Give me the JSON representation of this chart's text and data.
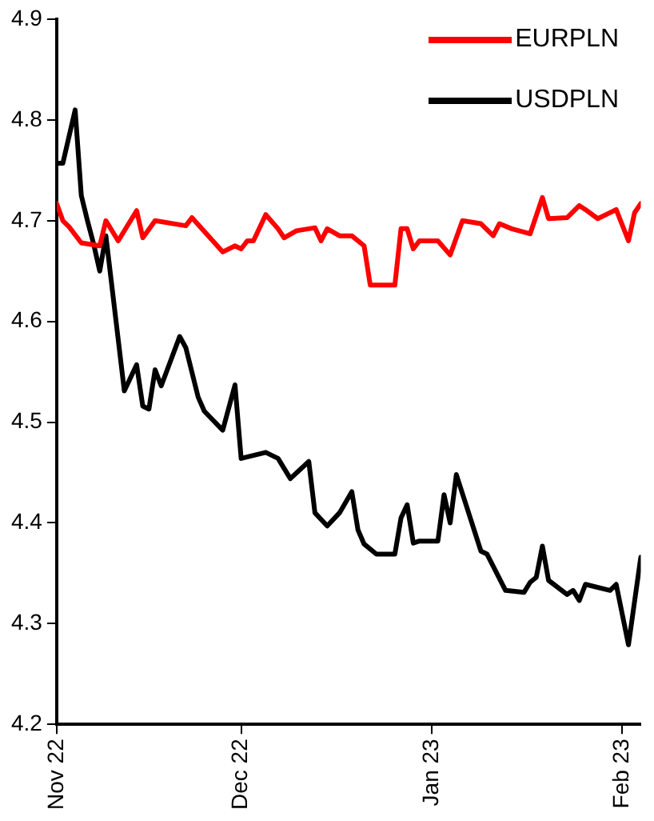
{
  "chart_data": {
    "type": "line",
    "legend": "top right",
    "marker": "none",
    "line_style": "solid",
    "xlim": [
      "2022-11-01",
      "2023-02-04"
    ],
    "ylim": [
      4.2,
      4.9
    ],
    "yticks": [
      4.2,
      4.3,
      4.4,
      4.5,
      4.6,
      4.7,
      4.8,
      4.9
    ],
    "xticks": [
      {
        "value": "2022-11-01",
        "label": "Nov 22"
      },
      {
        "value": "2022-12-01",
        "label": "Dec 22"
      },
      {
        "value": "2023-01-01",
        "label": "Jan 23"
      },
      {
        "value": "2023-02-01",
        "label": "Feb 23"
      }
    ],
    "series": [
      {
        "name": "EURPLN",
        "color": "#ff0000",
        "x": [
          "2022-11-01",
          "2022-11-02",
          "2022-11-03",
          "2022-11-05",
          "2022-11-08",
          "2022-11-09",
          "2022-11-11",
          "2022-11-14",
          "2022-11-15",
          "2022-11-17",
          "2022-11-22",
          "2022-11-23",
          "2022-11-28",
          "2022-11-30",
          "2022-12-01",
          "2022-12-02",
          "2022-12-03",
          "2022-12-05",
          "2022-12-07",
          "2022-12-08",
          "2022-12-10",
          "2022-12-13",
          "2022-12-14",
          "2022-12-15",
          "2022-12-17",
          "2022-12-19",
          "2022-12-21",
          "2022-12-22",
          "2022-12-26",
          "2022-12-27",
          "2022-12-28",
          "2022-12-29",
          "2022-12-30",
          "2023-01-02",
          "2023-01-04",
          "2023-01-06",
          "2023-01-09",
          "2023-01-11",
          "2023-01-12",
          "2023-01-14",
          "2023-01-17",
          "2023-01-19",
          "2023-01-20",
          "2023-01-23",
          "2023-01-25",
          "2023-01-26",
          "2023-01-28",
          "2023-01-31",
          "2023-02-02",
          "2023-02-03",
          "2023-02-04"
        ],
        "values": [
          4.717,
          4.7,
          4.694,
          4.678,
          4.675,
          4.7,
          4.68,
          4.71,
          4.683,
          4.7,
          4.695,
          4.703,
          4.669,
          4.675,
          4.672,
          4.68,
          4.68,
          4.706,
          4.692,
          4.683,
          4.69,
          4.693,
          4.68,
          4.692,
          4.685,
          4.685,
          4.675,
          4.636,
          4.636,
          4.692,
          4.692,
          4.672,
          4.68,
          4.68,
          4.666,
          4.7,
          4.697,
          4.685,
          4.697,
          4.692,
          4.687,
          4.723,
          4.702,
          4.703,
          4.715,
          4.711,
          4.702,
          4.711,
          4.68,
          4.708,
          4.717
        ]
      },
      {
        "name": "USDPLN",
        "color": "#000000",
        "x": [
          "2022-11-01",
          "2022-11-02",
          "2022-11-04",
          "2022-11-05",
          "2022-11-06",
          "2022-11-07",
          "2022-11-08",
          "2022-11-09",
          "2022-11-12",
          "2022-11-14",
          "2022-11-15",
          "2022-11-16",
          "2022-11-17",
          "2022-11-18",
          "2022-11-21",
          "2022-11-22",
          "2022-11-24",
          "2022-11-25",
          "2022-11-28",
          "2022-11-30",
          "2022-12-01",
          "2022-12-03",
          "2022-12-05",
          "2022-12-07",
          "2022-12-09",
          "2022-12-12",
          "2022-12-13",
          "2022-12-15",
          "2022-12-17",
          "2022-12-19",
          "2022-12-20",
          "2022-12-21",
          "2022-12-23",
          "2022-12-26",
          "2022-12-27",
          "2022-12-28",
          "2022-12-29",
          "2022-12-30",
          "2023-01-02",
          "2023-01-03",
          "2023-01-04",
          "2023-01-05",
          "2023-01-09",
          "2023-01-10",
          "2023-01-13",
          "2023-01-16",
          "2023-01-17",
          "2023-01-18",
          "2023-01-19",
          "2023-01-20",
          "2023-01-23",
          "2023-01-24",
          "2023-01-25",
          "2023-01-26",
          "2023-01-30",
          "2023-01-31",
          "2023-02-02",
          "2023-02-04"
        ],
        "values": [
          4.757,
          4.757,
          4.81,
          4.725,
          4.7,
          4.677,
          4.65,
          4.685,
          4.531,
          4.557,
          4.516,
          4.513,
          4.552,
          4.536,
          4.585,
          4.574,
          4.525,
          4.511,
          4.492,
          4.537,
          4.464,
          4.467,
          4.47,
          4.464,
          4.444,
          4.461,
          4.41,
          4.397,
          4.41,
          4.431,
          4.393,
          4.379,
          4.369,
          4.369,
          4.405,
          4.418,
          4.38,
          4.382,
          4.382,
          4.428,
          4.4,
          4.448,
          4.372,
          4.369,
          4.333,
          4.331,
          4.341,
          4.346,
          4.377,
          4.343,
          4.329,
          4.333,
          4.323,
          4.339,
          4.333,
          4.339,
          4.279,
          4.366
        ]
      }
    ]
  }
}
